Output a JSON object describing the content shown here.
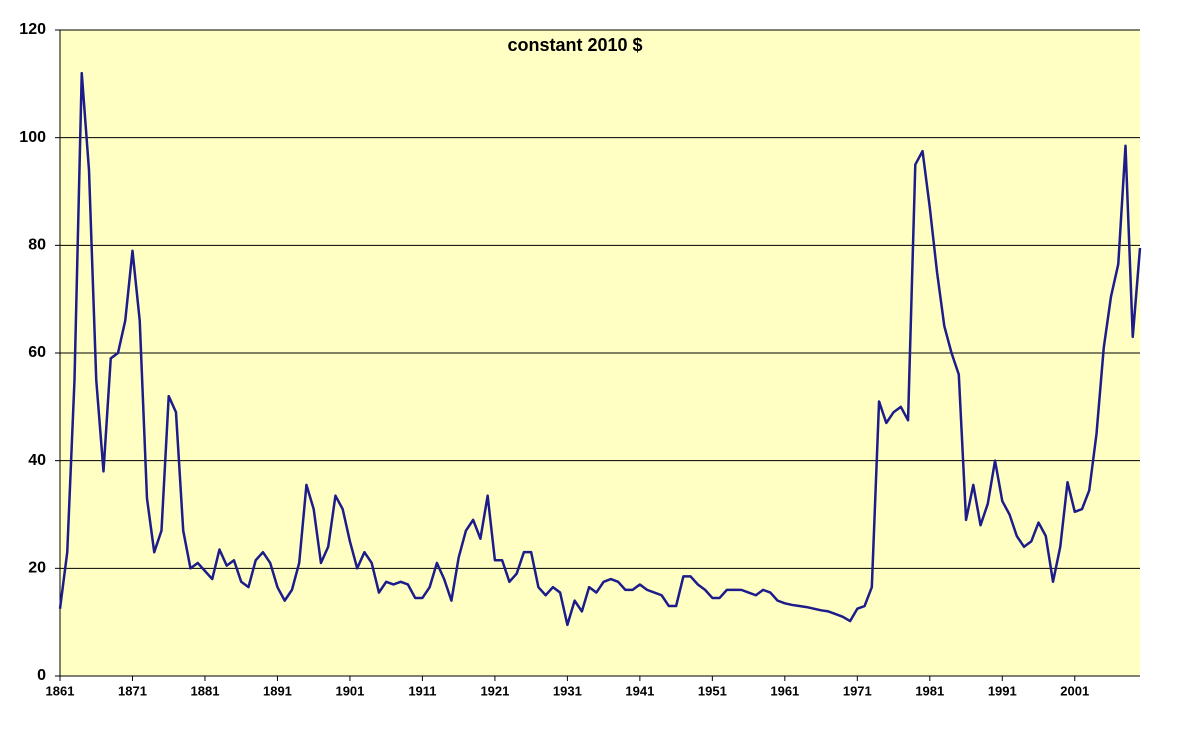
{
  "chart_data": {
    "type": "line",
    "title": "constant 2010 $",
    "x": [
      1861,
      1862,
      1863,
      1864,
      1865,
      1866,
      1867,
      1868,
      1869,
      1870,
      1871,
      1872,
      1873,
      1874,
      1875,
      1876,
      1877,
      1878,
      1879,
      1880,
      1881,
      1882,
      1883,
      1884,
      1885,
      1886,
      1887,
      1888,
      1889,
      1890,
      1891,
      1892,
      1893,
      1894,
      1895,
      1896,
      1897,
      1898,
      1899,
      1900,
      1901,
      1902,
      1903,
      1904,
      1905,
      1906,
      1907,
      1908,
      1909,
      1910,
      1911,
      1912,
      1913,
      1914,
      1915,
      1916,
      1917,
      1918,
      1919,
      1920,
      1921,
      1922,
      1923,
      1924,
      1925,
      1926,
      1927,
      1928,
      1929,
      1930,
      1931,
      1932,
      1933,
      1934,
      1935,
      1936,
      1937,
      1938,
      1939,
      1940,
      1941,
      1942,
      1943,
      1944,
      1945,
      1946,
      1947,
      1948,
      1949,
      1950,
      1951,
      1952,
      1953,
      1954,
      1955,
      1956,
      1957,
      1958,
      1959,
      1960,
      1961,
      1962,
      1963,
      1964,
      1965,
      1966,
      1967,
      1968,
      1969,
      1970,
      1971,
      1972,
      1973,
      1974,
      1975,
      1976,
      1977,
      1978,
      1979,
      1980,
      1981,
      1982,
      1983,
      1984,
      1985,
      1986,
      1987,
      1988,
      1989,
      1990,
      1991,
      1992,
      1993,
      1994,
      1995,
      1996,
      1997,
      1998,
      1999,
      2000,
      2001,
      2002,
      2003,
      2004,
      2005,
      2006,
      2007,
      2008,
      2009,
      2010
    ],
    "values": [
      12.5,
      23,
      55,
      112,
      94,
      55,
      38,
      59,
      60,
      66,
      79,
      66,
      33,
      23,
      27,
      52,
      49,
      27,
      20,
      21,
      19.5,
      18,
      23.5,
      20.5,
      21.5,
      17.5,
      16.5,
      21.5,
      23,
      21,
      16.5,
      14,
      16,
      21,
      35.5,
      31,
      21,
      24,
      33.5,
      31,
      25,
      20,
      23,
      21,
      15.5,
      17.5,
      17,
      17.5,
      17,
      14.5,
      14.5,
      16.5,
      21,
      18,
      14,
      22,
      27,
      29,
      25.5,
      33.5,
      21.5,
      21.5,
      17.5,
      19,
      23,
      23,
      16.5,
      15,
      16.5,
      15.5,
      9.5,
      14,
      12,
      16.5,
      15.5,
      17.5,
      18,
      17.5,
      16,
      16,
      17,
      16,
      15.5,
      15,
      13,
      13,
      18.5,
      18.5,
      17,
      16,
      14.5,
      14.5,
      16,
      16,
      16,
      15.5,
      15,
      16,
      15.5,
      14,
      13.5,
      13.2,
      13,
      12.8,
      12.5,
      12.2,
      12,
      11.5,
      11,
      10.2,
      12.5,
      13,
      16.5,
      51,
      47,
      49,
      50,
      47.5,
      95,
      97.5,
      87,
      75,
      65,
      60,
      56,
      29,
      35.5,
      28,
      32,
      40,
      32.5,
      30,
      26,
      24,
      25,
      28.5,
      26,
      17.5,
      24,
      36,
      30.5,
      31,
      34.5,
      45,
      61,
      70.5,
      76.5,
      98.5,
      63,
      79.5
    ],
    "color": "#1c1c8a",
    "xlim": [
      1861,
      2010
    ],
    "xticks": [
      1861,
      1871,
      1881,
      1891,
      1901,
      1911,
      1921,
      1931,
      1941,
      1951,
      1961,
      1971,
      1981,
      1991,
      2001
    ],
    "ylim": [
      0,
      120
    ],
    "yticks": [
      0,
      20,
      40,
      60,
      80,
      100,
      120
    ],
    "grid": true
  }
}
